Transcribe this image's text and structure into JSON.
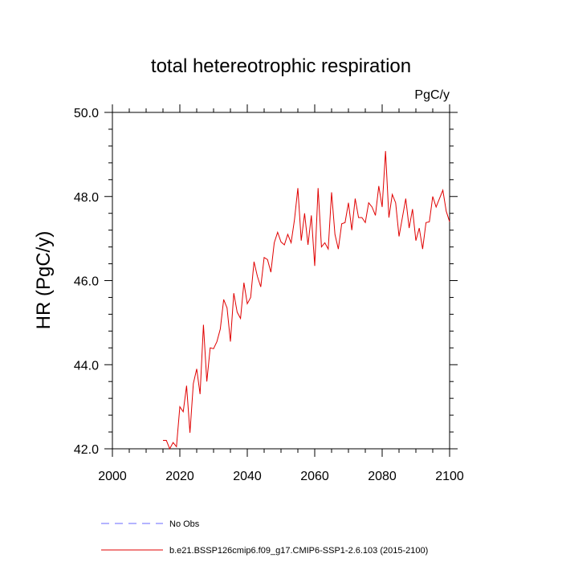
{
  "chart_data": {
    "type": "line",
    "title": "total hetereotrophic respiration",
    "units": "PgC/y",
    "ylabel": "HR  (PgC/y)",
    "xlabel": "",
    "xlim": [
      2000,
      2100
    ],
    "ylim": [
      42.0,
      50.0
    ],
    "x_ticks": [
      2000,
      2020,
      2040,
      2060,
      2080,
      2100
    ],
    "x_tick_labels": [
      "2000",
      "2020",
      "2040",
      "2060",
      "2080",
      "2100"
    ],
    "y_ticks": [
      42.0,
      44.0,
      46.0,
      48.0,
      50.0
    ],
    "y_tick_labels": [
      "42.0",
      "44.0",
      "46.0",
      "48.0",
      "50.0"
    ],
    "grid": false,
    "legend_position": "bottom",
    "series": [
      {
        "name": "No Obs",
        "color": "#6a6aff",
        "style": "dashed",
        "x": [],
        "values": []
      },
      {
        "name": "b.e21.BSSP126cmip6.f09_g17.CMIP6-SSP1-2.6.103 (2015-2100)",
        "color": "#e00000",
        "style": "solid",
        "x": [
          2015,
          2016,
          2017,
          2018,
          2019,
          2020,
          2021,
          2022,
          2023,
          2024,
          2025,
          2026,
          2027,
          2028,
          2029,
          2030,
          2031,
          2032,
          2033,
          2034,
          2035,
          2036,
          2037,
          2038,
          2039,
          2040,
          2041,
          2042,
          2043,
          2044,
          2045,
          2046,
          2047,
          2048,
          2049,
          2050,
          2051,
          2052,
          2053,
          2054,
          2055,
          2056,
          2057,
          2058,
          2059,
          2060,
          2061,
          2062,
          2063,
          2064,
          2065,
          2066,
          2067,
          2068,
          2069,
          2070,
          2071,
          2072,
          2073,
          2074,
          2075,
          2076,
          2077,
          2078,
          2079,
          2080,
          2081,
          2082,
          2083,
          2084,
          2085,
          2086,
          2087,
          2088,
          2089,
          2090,
          2091,
          2092,
          2093,
          2094,
          2095,
          2096,
          2097,
          2098,
          2099,
          2100
        ],
        "values": [
          42.2,
          42.2,
          42.0,
          42.15,
          42.05,
          43.0,
          42.88,
          43.5,
          42.38,
          43.55,
          43.9,
          43.3,
          44.95,
          43.6,
          44.4,
          44.38,
          44.55,
          44.85,
          45.55,
          45.35,
          44.55,
          45.7,
          45.25,
          45.1,
          45.95,
          45.45,
          45.6,
          46.45,
          46.1,
          45.85,
          46.55,
          46.5,
          46.2,
          46.9,
          47.15,
          46.92,
          46.85,
          47.1,
          46.9,
          47.45,
          48.2,
          46.95,
          47.6,
          46.85,
          47.55,
          46.35,
          48.2,
          46.8,
          46.9,
          46.75,
          48.1,
          47.1,
          46.75,
          47.35,
          47.38,
          47.85,
          47.2,
          47.95,
          47.5,
          47.5,
          47.38,
          47.85,
          47.75,
          47.55,
          48.25,
          47.75,
          49.08,
          47.5,
          48.05,
          47.85,
          47.05,
          47.5,
          47.95,
          47.25,
          47.7,
          46.95,
          47.25,
          46.75,
          47.38,
          47.4,
          48.0,
          47.75,
          47.95,
          48.15,
          47.65,
          47.4
        ]
      }
    ]
  }
}
